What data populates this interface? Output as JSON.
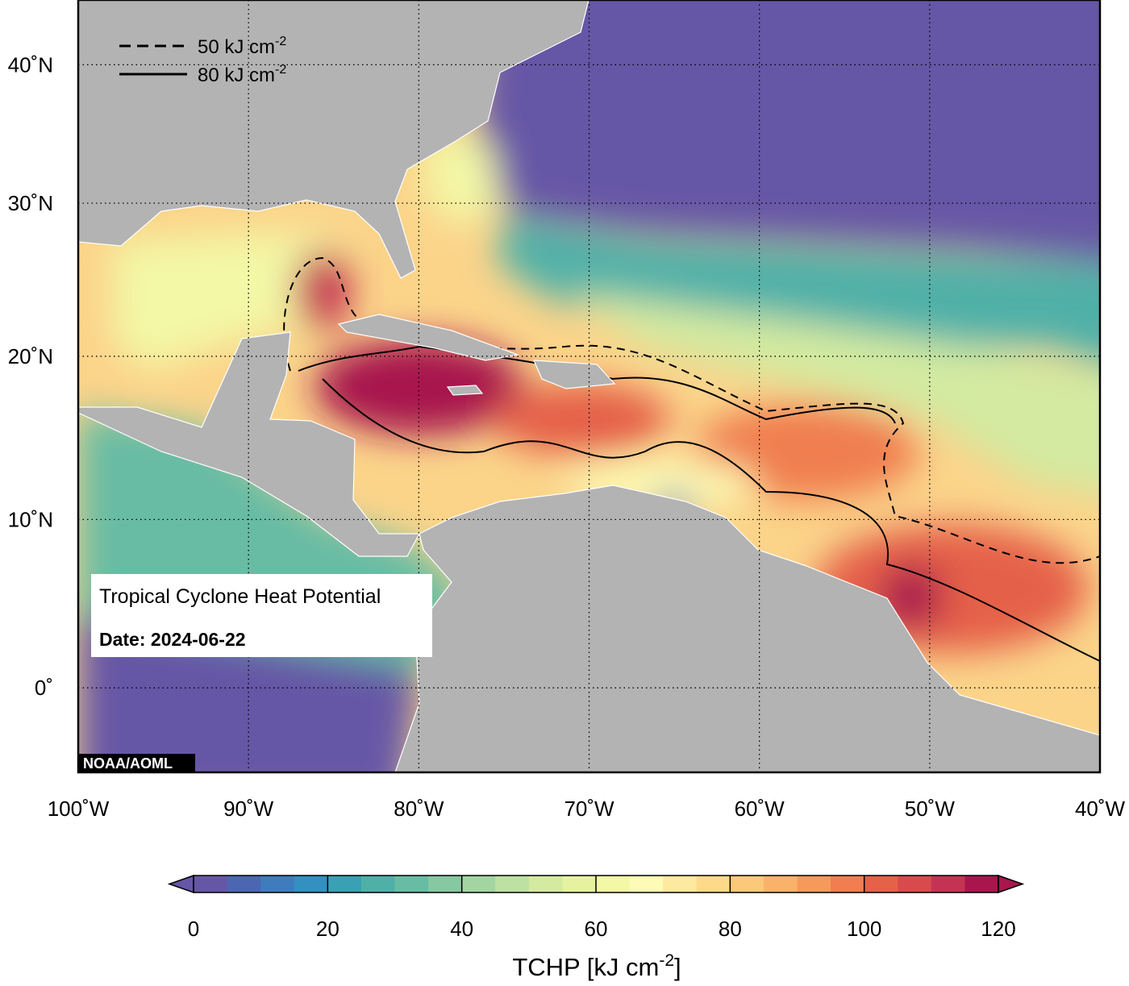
{
  "map": {
    "title": "Tropical Cyclone Heat Potential",
    "date_label": "Date: 2024-06-22",
    "credit": "NOAA/AOML",
    "legend": [
      {
        "style": "dashed",
        "label": "50 kJ cm",
        "sup": "-2"
      },
      {
        "style": "solid",
        "label": "80 kJ cm",
        "sup": "-2"
      }
    ],
    "lon_range": [
      -100,
      -40
    ],
    "lat_range": [
      -5,
      45.2
    ],
    "lon_ticks": [
      {
        "value": -100,
        "label": "100˚W"
      },
      {
        "value": -90,
        "label": "90˚W"
      },
      {
        "value": -80,
        "label": "80˚W"
      },
      {
        "value": -70,
        "label": "70˚W"
      },
      {
        "value": -60,
        "label": "60˚W"
      },
      {
        "value": -50,
        "label": "50˚W"
      },
      {
        "value": -40,
        "label": "40˚W"
      }
    ],
    "lat_ticks": [
      {
        "value": 0,
        "label": "0˚"
      },
      {
        "value": 10,
        "label": "10˚N"
      },
      {
        "value": 20,
        "label": "20˚N"
      },
      {
        "value": 30,
        "label": "30˚N"
      },
      {
        "value": 40,
        "label": "40˚N"
      }
    ]
  },
  "colorbar": {
    "label": "TCHP [kJ cm",
    "label_sup": "-2",
    "label_end": "]",
    "range": [
      0,
      120
    ],
    "ticks": [
      0,
      20,
      40,
      60,
      80,
      100,
      120
    ],
    "step": 5,
    "colors": [
      "#6656a6",
      "#4c66b2",
      "#3f7cbd",
      "#3390c0",
      "#3aa0b4",
      "#4fb0a8",
      "#68bca4",
      "#86c8a2",
      "#a2d5a2",
      "#bde0a3",
      "#d3eaa0",
      "#e6f2a0",
      "#f3f8a6",
      "#fdfbb5",
      "#fee9a0",
      "#fdd98a",
      "#fcc87a",
      "#f9b26a",
      "#f69a5c",
      "#f07e50",
      "#e56148",
      "#d94a4d",
      "#c43353",
      "#a8164d"
    ]
  }
}
